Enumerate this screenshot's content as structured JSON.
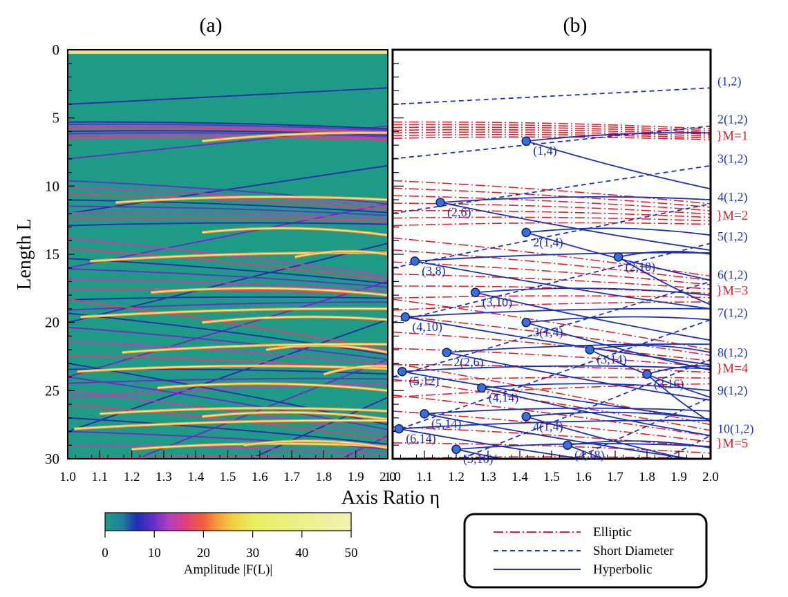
{
  "panel_a": {
    "label": "(a)"
  },
  "panel_b": {
    "label": "(b)"
  },
  "axes": {
    "ylabel": "Length L",
    "xlabel": "Axis Ratio η",
    "y_ticks": [
      "0",
      "5",
      "10",
      "15",
      "20",
      "25",
      "30"
    ],
    "x_ticks": [
      "1.0",
      "1.1",
      "1.2",
      "1.3",
      "1.4",
      "1.5",
      "1.6",
      "1.7",
      "1.8",
      "1.9",
      "2.0"
    ]
  },
  "colorbar": {
    "label": "Amplitude |F(L)|",
    "ticks": [
      "0",
      "10",
      "20",
      "30",
      "40",
      "50"
    ]
  },
  "legend": {
    "entries": [
      {
        "label": "Elliptic",
        "style": "dashdot",
        "color": "#e0202a"
      },
      {
        "label": "Short  Diameter",
        "style": "dashed",
        "color": "#1c2fb8"
      },
      {
        "label": "Hyperbolic",
        "style": "solid",
        "color": "#1c2fb8"
      }
    ]
  },
  "right_labels": {
    "blue": [
      "(1,2)",
      "2(1,2)",
      "3(1,2)",
      "4(1,2)",
      "5(1,2)",
      "6(1,2)",
      "7(1,2)",
      "8(1,2)",
      "9(1,2)",
      "10(1,2)"
    ],
    "red": [
      "}M=1",
      "}M=2",
      "}M=3",
      "}M=4",
      "}M=5"
    ]
  },
  "orbit_labels": [
    "(1,4)",
    "(2,6)",
    "2(1,4)",
    "(3,8)",
    "(2,10)",
    "(3,10)",
    "(4,10)",
    "3(1,4)",
    "(3,14)",
    "2(2,6)",
    "(5,12)",
    "(4,14)",
    "(3,16)",
    "(5,14)",
    "4(1,4)",
    "(6,14)",
    "(5,16)",
    "(4,18)"
  ],
  "colors": {
    "blue": "#1c2fb8",
    "red": "#e0202a",
    "dot": "#3a6fd6",
    "heat_bg": "#1f9a86"
  },
  "chart_data": {
    "type": "line",
    "x_range": [
      1.0,
      2.0
    ],
    "y_range": [
      0,
      30
    ],
    "y_inverted": true,
    "colorbar_range": [
      0,
      50
    ],
    "short_diameter_1_2": [
      {
        "name": "(1,2)",
        "x": [
          1.0,
          2.0
        ],
        "y": [
          4.0,
          2.8
        ]
      },
      {
        "name": "2(1,2)",
        "x": [
          1.0,
          2.0
        ],
        "y": [
          8.0,
          5.6
        ]
      },
      {
        "name": "3(1,2)",
        "x": [
          1.0,
          2.0
        ],
        "y": [
          12.0,
          8.5
        ]
      },
      {
        "name": "4(1,2)",
        "x": [
          1.0,
          2.0
        ],
        "y": [
          16.0,
          11.3
        ]
      },
      {
        "name": "5(1,2)",
        "x": [
          1.0,
          2.0
        ],
        "y": [
          20.0,
          14.2
        ]
      },
      {
        "name": "6(1,2)",
        "x": [
          1.0,
          2.0
        ],
        "y": [
          24.0,
          17.0
        ]
      },
      {
        "name": "7(1,2)",
        "x": [
          1.0,
          2.0
        ],
        "y": [
          28.0,
          19.8
        ]
      },
      {
        "name": "8(1,2)",
        "x": [
          1.0,
          2.0
        ],
        "y": [
          32.0,
          22.7
        ]
      },
      {
        "name": "9(1,2)",
        "x": [
          1.0,
          2.0
        ],
        "y": [
          36.0,
          25.5
        ]
      },
      {
        "name": "10(1,2)",
        "x": [
          1.0,
          2.0
        ],
        "y": [
          40.0,
          28.3
        ]
      }
    ],
    "bifurcation_points": [
      {
        "label": "(1,4)",
        "x": 1.42,
        "y": 6.7
      },
      {
        "label": "(2,6)",
        "x": 1.15,
        "y": 11.2
      },
      {
        "label": "2(1,4)",
        "x": 1.42,
        "y": 13.4
      },
      {
        "label": "(3,8)",
        "x": 1.07,
        "y": 15.5
      },
      {
        "label": "(2,10)",
        "x": 1.71,
        "y": 15.2
      },
      {
        "label": "(3,10)",
        "x": 1.26,
        "y": 17.8
      },
      {
        "label": "(4,10)",
        "x": 1.04,
        "y": 19.6
      },
      {
        "label": "3(1,4)",
        "x": 1.42,
        "y": 20.0
      },
      {
        "label": "(3,14)",
        "x": 1.62,
        "y": 22.0
      },
      {
        "label": "2(2,6)",
        "x": 1.17,
        "y": 22.2
      },
      {
        "label": "(5,12)",
        "x": 1.03,
        "y": 23.6
      },
      {
        "label": "(4,14)",
        "x": 1.28,
        "y": 24.8
      },
      {
        "label": "(3,16)",
        "x": 1.8,
        "y": 23.8
      },
      {
        "label": "(5,14)",
        "x": 1.1,
        "y": 26.7
      },
      {
        "label": "4(1,4)",
        "x": 1.42,
        "y": 26.9
      },
      {
        "label": "(6,14)",
        "x": 1.02,
        "y": 27.8
      },
      {
        "label": "(5,16)",
        "x": 1.2,
        "y": 29.3
      },
      {
        "label": "(4,18)",
        "x": 1.55,
        "y": 29.0
      }
    ],
    "elliptic_bands": [
      {
        "name": "M=1",
        "y_start": [
          5.3,
          6.5
        ],
        "y_end": [
          5.8,
          6.6
        ]
      },
      {
        "name": "M=2",
        "y_start": [
          9.6,
          12.9
        ],
        "y_end": [
          11.3,
          12.8
        ]
      },
      {
        "name": "M=3",
        "y_start": [
          13.8,
          19.1
        ],
        "y_end": [
          16.6,
          18.5
        ]
      },
      {
        "name": "M=4",
        "y_start": [
          18.3,
          25.5
        ],
        "y_end": [
          22.0,
          24.5
        ]
      },
      {
        "name": "M=5",
        "y_start": [
          23.0,
          30.0
        ],
        "y_end": [
          27.5,
          30.0
        ]
      }
    ]
  }
}
